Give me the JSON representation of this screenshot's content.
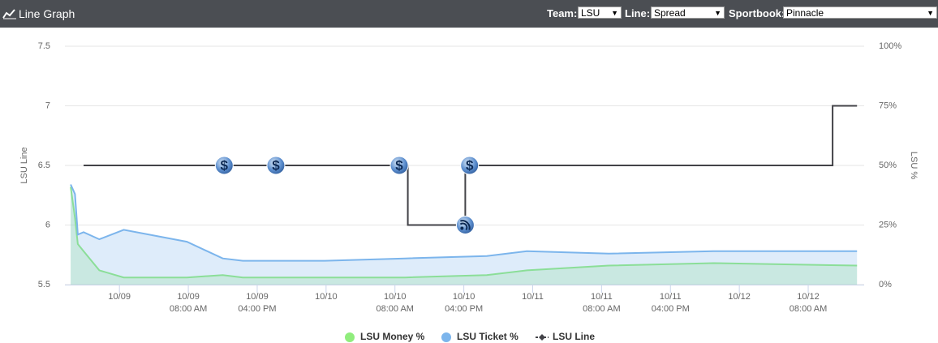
{
  "header": {
    "title": "Line Graph",
    "team_label": "Team:",
    "team": "LSU",
    "line_label": "Line:",
    "line": "Spread",
    "sportsbook_label": "Sportbook:",
    "sportsbook": "Pinnacle"
  },
  "chart_data": {
    "type": "line",
    "ylabel": "LSU Line",
    "y2label": "LSU %",
    "xlim": [
      "10/08 05:40 PM",
      "10/12 02:30 PM"
    ],
    "xticks": [
      {
        "date": "10/09"
      },
      {
        "date": "10/09",
        "time": "08:00 AM"
      },
      {
        "date": "10/09",
        "time": "04:00 PM"
      },
      {
        "date": "10/10"
      },
      {
        "date": "10/10",
        "time": "08:00 AM"
      },
      {
        "date": "10/10",
        "time": "04:00 PM"
      },
      {
        "date": "10/11"
      },
      {
        "date": "10/11",
        "time": "08:00 AM"
      },
      {
        "date": "10/11",
        "time": "04:00 PM"
      },
      {
        "date": "10/12"
      },
      {
        "date": "10/12",
        "time": "08:00 AM"
      }
    ],
    "ylim": [
      5.5,
      7.5
    ],
    "yticks": [
      5.5,
      6,
      6.5,
      7,
      7.5
    ],
    "y2lim": [
      0,
      100
    ],
    "y2ticks": [
      {
        "value": 0,
        "label": "0%"
      },
      {
        "value": 25,
        "label": "25%"
      },
      {
        "value": 50,
        "label": "50%"
      },
      {
        "value": 75,
        "label": "75%"
      },
      {
        "value": 100,
        "label": "100%"
      }
    ],
    "grid": true,
    "series": [
      {
        "name": "LSU Money %",
        "color": "#90ed7d",
        "axis": "y2",
        "area": true,
        "x": [
          "10/08 06:20 PM",
          "10/08 06:50 PM",
          "10/08 07:10 PM",
          "10/08 07:50 PM",
          "10/08 09:40 PM",
          "10/09 12:30 AM",
          "10/09 07:50 AM",
          "10/09 12:00 PM",
          "10/09 02:20 PM",
          "10/09 06:10 PM",
          "10/09 11:50 PM",
          "10/10 09:10 AM",
          "10/10 06:40 PM",
          "10/10 11:20 PM",
          "10/11 08:50 AM",
          "10/11 09:00 PM",
          "10/12 01:40 PM"
        ],
        "values": [
          41,
          28,
          17,
          14,
          6,
          3,
          3,
          4,
          3,
          3,
          3,
          3,
          4,
          6,
          8,
          9,
          8
        ]
      },
      {
        "name": "LSU Ticket %",
        "color": "#7cb5ec",
        "axis": "y2",
        "area": true,
        "x": [
          "10/08 06:20 PM",
          "10/08 06:50 PM",
          "10/08 07:10 PM",
          "10/08 07:50 PM",
          "10/08 09:40 PM",
          "10/09 12:30 AM",
          "10/09 07:50 AM",
          "10/09 12:00 PM",
          "10/09 02:20 PM",
          "10/09 06:10 PM",
          "10/09 11:50 PM",
          "10/10 09:10 AM",
          "10/10 06:40 PM",
          "10/10 11:20 PM",
          "10/11 08:50 AM",
          "10/11 09:00 PM",
          "10/12 01:40 PM"
        ],
        "values": [
          42,
          38,
          21,
          22,
          19,
          23,
          18,
          11,
          10,
          10,
          10,
          11,
          12,
          14,
          13,
          14,
          14
        ]
      },
      {
        "name": "LSU Line",
        "color": "#434348",
        "axis": "y",
        "x": [
          "10/08 07:50 PM",
          "10/10 09:30 AM",
          "10/10 09:30 AM",
          "10/10 04:10 PM",
          "10/10 04:10 PM",
          "10/12 10:50 AM",
          "10/12 10:50 AM",
          "10/12 01:40 PM"
        ],
        "values": [
          6.5,
          6.5,
          6,
          6,
          6.5,
          6.5,
          7,
          7
        ]
      }
    ],
    "markers": [
      {
        "x": "10/09 12:10 PM",
        "y": 6.5,
        "label": "$"
      },
      {
        "x": "10/09 06:10 PM",
        "y": 6.5,
        "label": "$"
      },
      {
        "x": "10/10 08:30 AM",
        "y": 6.5,
        "label": "$"
      },
      {
        "x": "10/10 04:40 PM",
        "y": 6.5,
        "label": "$"
      },
      {
        "x": "10/10 04:10 PM",
        "y": 6
      }
    ]
  }
}
